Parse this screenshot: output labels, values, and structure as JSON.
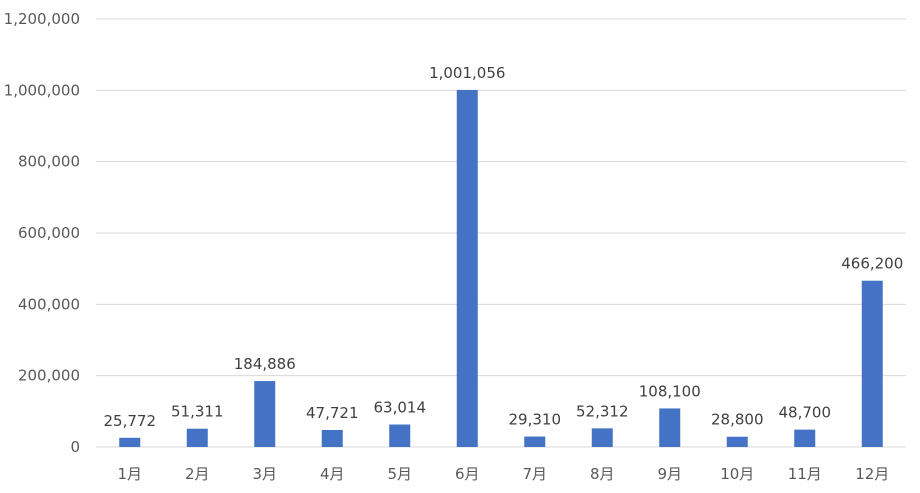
{
  "chart_data": {
    "type": "bar",
    "categories": [
      "1月",
      "2月",
      "3月",
      "4月",
      "5月",
      "6月",
      "7月",
      "8月",
      "9月",
      "10月",
      "11月",
      "12月"
    ],
    "values": [
      25772,
      51311,
      184886,
      47721,
      63014,
      1001056,
      29310,
      52312,
      108100,
      28800,
      48700,
      466200
    ],
    "data_labels": [
      "25,772",
      "51,311",
      "184,886",
      "47,721",
      "63,014",
      "1,001,056",
      "29,310",
      "52,312",
      "108,100",
      "28,800",
      "48,700",
      "466,200"
    ],
    "y_ticks": [
      "0",
      "200,000",
      "400,000",
      "600,000",
      "800,000",
      "1,000,000",
      "1,200,000"
    ],
    "y_tick_values": [
      0,
      200000,
      400000,
      600000,
      800000,
      1000000,
      1200000
    ],
    "ylim": [
      0,
      1200000
    ],
    "grid": true,
    "legend": "none",
    "colors": {
      "bar": "#4472C4",
      "grid": "#D9D9D9"
    }
  }
}
